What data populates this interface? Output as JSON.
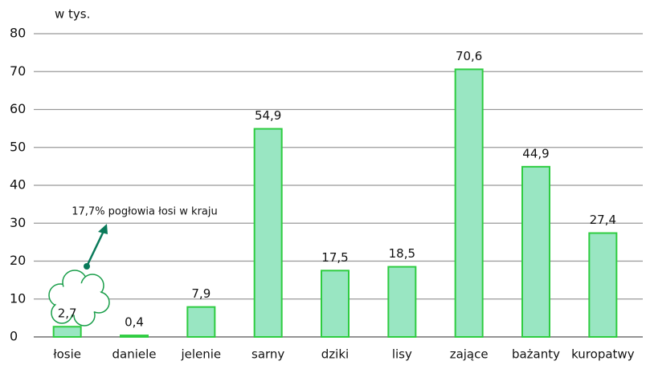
{
  "chart_data": {
    "type": "bar",
    "ylabel": "w tys.",
    "categories": [
      "łosie",
      "daniele",
      "jelenie",
      "sarny",
      "dziki",
      "lisy",
      "zające",
      "bażanty",
      "kuropatwy"
    ],
    "values": [
      2.7,
      0.4,
      7.9,
      54.9,
      17.5,
      18.5,
      70.6,
      44.9,
      27.4
    ],
    "value_labels": [
      "2,7",
      "0,4",
      "7,9",
      "54,9",
      "17,5",
      "18,5",
      "70,6",
      "44,9",
      "27,4"
    ],
    "color": "#99e6c2",
    "edge_color": "#2ecc40",
    "ylim": [
      0,
      80
    ],
    "yticks": [
      0,
      10,
      20,
      30,
      40,
      50,
      60,
      70,
      80
    ],
    "grid": true,
    "annotation": "17,7% pogłowia łosi w kraju"
  }
}
